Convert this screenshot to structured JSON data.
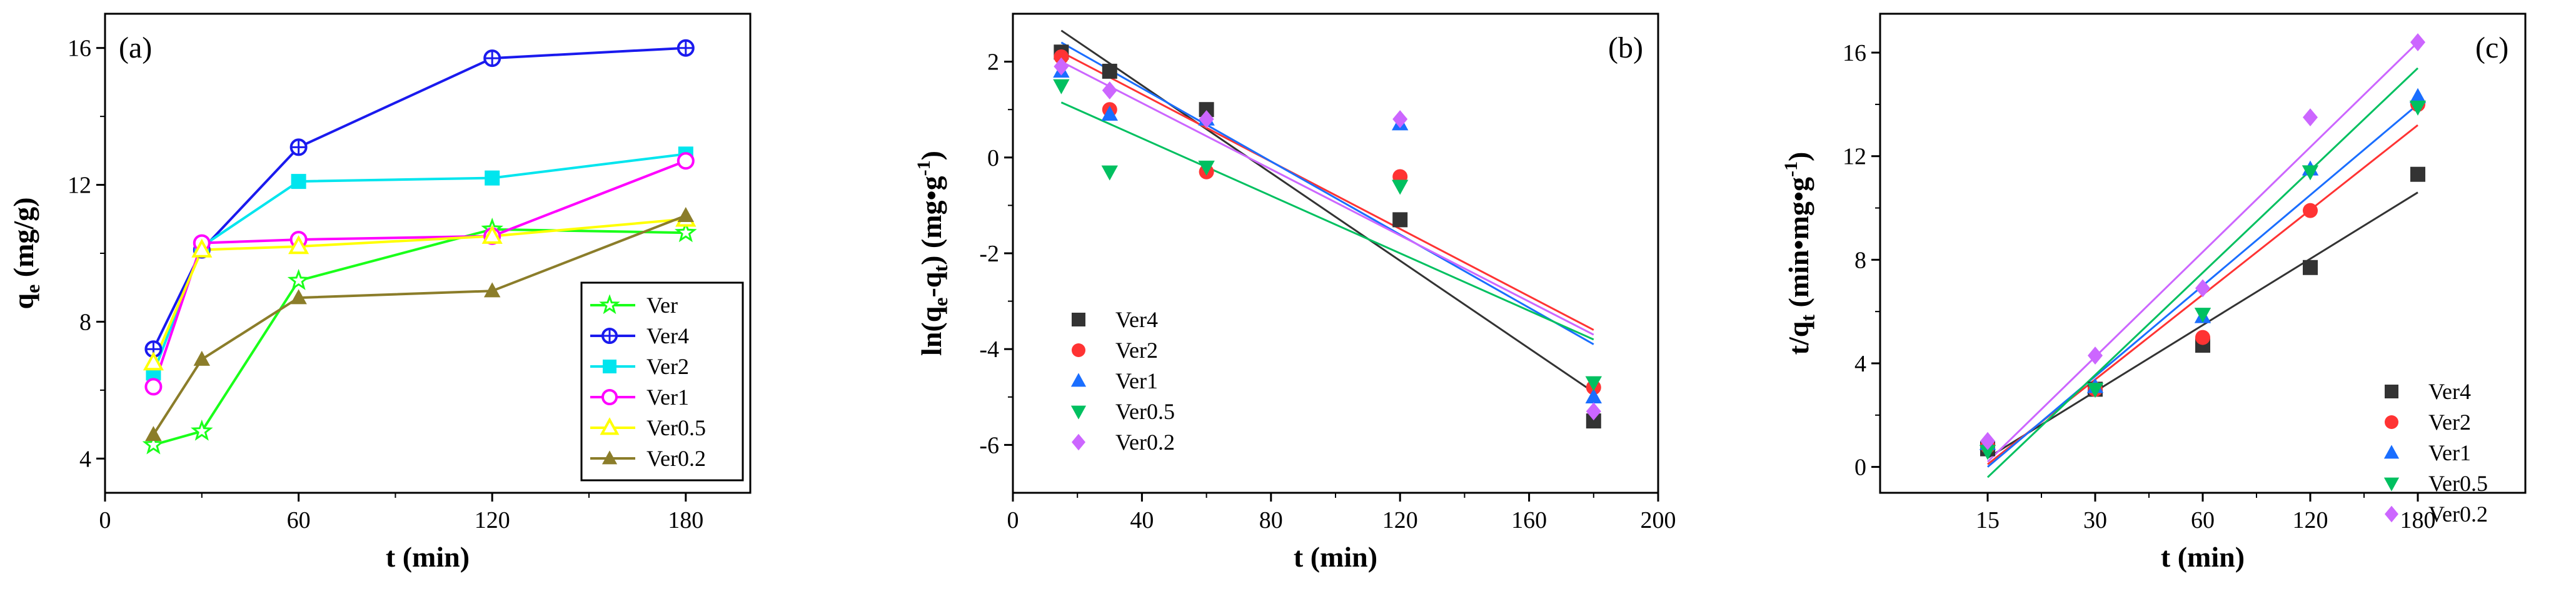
{
  "chart_data": [
    {
      "panel": "(a)",
      "type": "line",
      "xlabel": "t (min)",
      "ylabel": {
        "main": "q",
        "sub": "e",
        "rest": " (mg/g)"
      },
      "xlim": [
        0,
        200
      ],
      "ylim": [
        3,
        17
      ],
      "xticks": [
        0,
        60,
        120,
        180
      ],
      "yticks": [
        4,
        8,
        12,
        16
      ],
      "legend": "bottom-right",
      "series": [
        {
          "name": "Ver",
          "color": "#1aff1a",
          "marker": "star",
          "x": [
            15,
            30,
            60,
            120,
            180
          ],
          "y": [
            4.4,
            4.8,
            9.2,
            10.7,
            10.6
          ]
        },
        {
          "name": "Ver4",
          "color": "#1a1aee",
          "marker": "circle-plus",
          "x": [
            15,
            30,
            60,
            120,
            180
          ],
          "y": [
            7.2,
            10.1,
            13.1,
            15.7,
            16.0
          ]
        },
        {
          "name": "Ver2",
          "color": "#00e5ee",
          "marker": "square",
          "x": [
            15,
            30,
            60,
            120,
            180
          ],
          "y": [
            6.5,
            10.2,
            12.1,
            12.2,
            12.9
          ]
        },
        {
          "name": "Ver1",
          "color": "#ff00ff",
          "marker": "circle-open",
          "x": [
            15,
            30,
            60,
            120,
            180
          ],
          "y": [
            6.1,
            10.3,
            10.4,
            10.5,
            12.7
          ]
        },
        {
          "name": "Ver0.5",
          "color": "#ffff00",
          "marker": "triangle-open",
          "x": [
            15,
            30,
            60,
            120,
            180
          ],
          "y": [
            6.8,
            10.1,
            10.2,
            10.5,
            11.0
          ]
        },
        {
          "name": "Ver0.2",
          "color": "#8b7d2a",
          "marker": "triangle",
          "x": [
            15,
            30,
            60,
            120,
            180
          ],
          "y": [
            4.7,
            6.9,
            8.7,
            8.9,
            11.1
          ]
        }
      ]
    },
    {
      "panel": "(b)",
      "type": "scatter",
      "xlabel": "t (min)",
      "ylabel": {
        "main": "ln(q",
        "sub1": "e",
        "mid": "-q",
        "sub2": "t",
        "rest": ") (mg•g",
        "sup": "-1",
        "end": ")"
      },
      "xlim": [
        0,
        200
      ],
      "ylim": [
        -7,
        3
      ],
      "xticks": [
        0,
        40,
        80,
        120,
        160,
        200
      ],
      "yticks": [
        -6,
        -4,
        -2,
        0,
        2
      ],
      "legend": "center-left",
      "series": [
        {
          "name": "Ver4",
          "color": "#333333",
          "marker": "square",
          "x": [
            15,
            30,
            60,
            120,
            180
          ],
          "y": [
            2.2,
            1.8,
            1.0,
            -1.3,
            -5.5
          ],
          "fit": [
            [
              15,
              2.65
            ],
            [
              180,
              -4.9
            ]
          ]
        },
        {
          "name": "Ver2",
          "color": "#ff3333",
          "marker": "circle",
          "x": [
            15,
            30,
            60,
            120,
            180
          ],
          "y": [
            2.1,
            1.0,
            -0.3,
            -0.4,
            -4.8
          ],
          "fit": [
            [
              15,
              2.2
            ],
            [
              180,
              -3.6
            ]
          ]
        },
        {
          "name": "Ver1",
          "color": "#1a6eff",
          "marker": "triangle",
          "x": [
            15,
            30,
            60,
            120,
            180
          ],
          "y": [
            1.8,
            0.9,
            0.8,
            0.7,
            -5.0
          ],
          "fit": [
            [
              15,
              2.4
            ],
            [
              180,
              -3.9
            ]
          ]
        },
        {
          "name": "Ver0.5",
          "color": "#00c060",
          "marker": "triangle-down",
          "x": [
            15,
            30,
            60,
            120,
            180
          ],
          "y": [
            1.5,
            -0.3,
            -0.2,
            -0.6,
            -4.7
          ],
          "fit": [
            [
              15,
              1.15
            ],
            [
              180,
              -3.8
            ]
          ]
        },
        {
          "name": "Ver0.2",
          "color": "#cc66ff",
          "marker": "diamond",
          "x": [
            15,
            30,
            60,
            120,
            180
          ],
          "y": [
            1.9,
            1.4,
            0.8,
            0.8,
            -5.3
          ],
          "fit": [
            [
              15,
              2.0
            ],
            [
              180,
              -3.7
            ]
          ]
        }
      ]
    },
    {
      "panel": "(c)",
      "type": "scatter",
      "xlabel": "t (min)",
      "ylabel": {
        "main": "t/q",
        "sub": "t",
        "rest": " (min•mg•g",
        "sup": "-1",
        "end": ")"
      },
      "xlim": [
        0,
        6
      ],
      "ylim": [
        -1,
        17.5
      ],
      "xticks": [
        1,
        2,
        3,
        4,
        5
      ],
      "xticklabels": [
        "15",
        "30",
        "60",
        "120",
        "180"
      ],
      "yticks": [
        0,
        4,
        8,
        12,
        16
      ],
      "legend": "bottom-right",
      "series": [
        {
          "name": "Ver4",
          "color": "#333333",
          "marker": "square",
          "x": [
            1,
            2,
            3,
            4,
            5
          ],
          "y": [
            0.7,
            3.0,
            4.7,
            7.7,
            11.3
          ],
          "fit": [
            [
              1,
              0.35
            ],
            [
              5,
              10.6
            ]
          ]
        },
        {
          "name": "Ver2",
          "color": "#ff3333",
          "marker": "circle",
          "x": [
            1,
            2,
            3,
            4,
            5
          ],
          "y": [
            0.8,
            3.0,
            5.0,
            9.9,
            14.0
          ],
          "fit": [
            [
              1,
              0.1
            ],
            [
              5,
              13.2
            ]
          ]
        },
        {
          "name": "Ver1",
          "color": "#1a6eff",
          "marker": "triangle",
          "x": [
            1,
            2,
            3,
            4,
            5
          ],
          "y": [
            0.9,
            3.1,
            5.8,
            11.5,
            14.3
          ],
          "fit": [
            [
              1,
              0.0
            ],
            [
              5,
              14.0
            ]
          ]
        },
        {
          "name": "Ver0.5",
          "color": "#00c060",
          "marker": "triangle-down",
          "x": [
            1,
            2,
            3,
            4,
            5
          ],
          "y": [
            0.6,
            3.0,
            5.9,
            11.4,
            13.9
          ],
          "fit": [
            [
              1,
              -0.4
            ],
            [
              5,
              15.4
            ]
          ]
        },
        {
          "name": "Ver0.2",
          "color": "#cc66ff",
          "marker": "diamond",
          "x": [
            1,
            2,
            3,
            4,
            5
          ],
          "y": [
            1.0,
            4.3,
            6.9,
            13.5,
            16.4
          ],
          "fit": [
            [
              1,
              0.2
            ],
            [
              5,
              16.4
            ]
          ]
        }
      ]
    }
  ]
}
